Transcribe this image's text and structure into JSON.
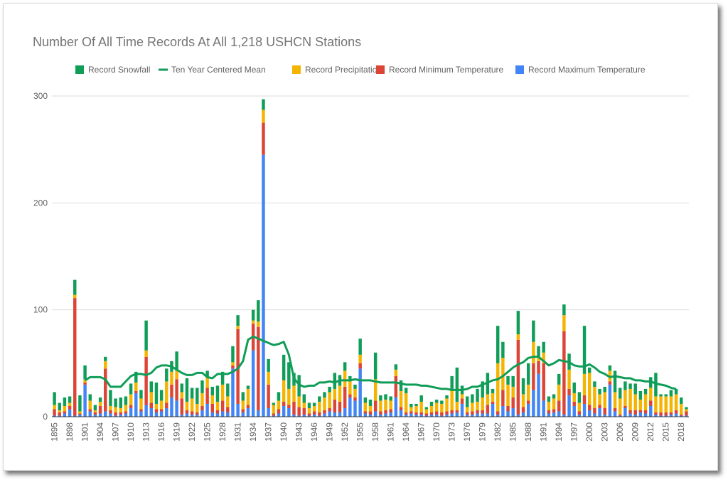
{
  "chart_data": {
    "type": "bar",
    "stacked": true,
    "title": "Number Of All Time Records At All 1,218 USHCN Stations",
    "xlabel": "",
    "ylabel": "",
    "ylim": [
      0,
      300
    ],
    "yticks": [
      0,
      100,
      200,
      300
    ],
    "grid": true,
    "legend_position": "top",
    "legend": [
      {
        "name": "Record Snowfall",
        "color": "#0f9d58",
        "marker": "square"
      },
      {
        "name": "Ten Year Centered Mean",
        "color": "#0f9d58",
        "marker": "line"
      },
      {
        "name": "Record Precipitation",
        "color": "#f4b400",
        "marker": "square"
      },
      {
        "name": "Record Minimum Temperature",
        "color": "#db4437",
        "marker": "square"
      },
      {
        "name": "Record Maximum Temperature",
        "color": "#4285f4",
        "marker": "square"
      }
    ],
    "x": [
      1895,
      1896,
      1897,
      1898,
      1899,
      1900,
      1901,
      1902,
      1903,
      1904,
      1905,
      1906,
      1907,
      1908,
      1909,
      1910,
      1911,
      1912,
      1913,
      1914,
      1915,
      1916,
      1917,
      1918,
      1919,
      1920,
      1921,
      1922,
      1923,
      1924,
      1925,
      1926,
      1927,
      1928,
      1929,
      1930,
      1931,
      1932,
      1933,
      1934,
      1935,
      1936,
      1937,
      1938,
      1939,
      1940,
      1941,
      1942,
      1943,
      1944,
      1945,
      1946,
      1947,
      1948,
      1949,
      1950,
      1951,
      1952,
      1953,
      1954,
      1955,
      1956,
      1957,
      1958,
      1959,
      1960,
      1961,
      1962,
      1963,
      1964,
      1965,
      1966,
      1967,
      1968,
      1969,
      1970,
      1971,
      1972,
      1973,
      1974,
      1975,
      1976,
      1977,
      1978,
      1979,
      1980,
      1981,
      1982,
      1983,
      1984,
      1985,
      1986,
      1987,
      1988,
      1989,
      1990,
      1991,
      1992,
      1993,
      1994,
      1995,
      1996,
      1997,
      1998,
      1999,
      2000,
      2001,
      2002,
      2003,
      2004,
      2005,
      2006,
      2007,
      2008,
      2009,
      2010,
      2011,
      2012,
      2013,
      2014,
      2015,
      2016,
      2017,
      2018,
      2019
    ],
    "x_tick_labels": [
      "1895",
      "1898",
      "1901",
      "1904",
      "1907",
      "1910",
      "1913",
      "1916",
      "1919",
      "1922",
      "1925",
      "1928",
      "1931",
      "1934",
      "1937",
      "1940",
      "1943",
      "1946",
      "1949",
      "1952",
      "1955",
      "1958",
      "1961",
      "1964",
      "1967",
      "1970",
      "1973",
      "1976",
      "1979",
      "1982",
      "1985",
      "1988",
      "1991",
      "1994",
      "1997",
      "2000",
      "2003",
      "2006",
      "2009",
      "2012",
      "2015",
      "2018"
    ],
    "series": [
      {
        "name": "Record Maximum Temperature",
        "color": "#4285f4",
        "values": [
          1,
          1,
          3,
          7,
          1,
          2,
          30,
          5,
          2,
          3,
          5,
          3,
          1,
          2,
          3,
          8,
          22,
          5,
          11,
          8,
          4,
          5,
          8,
          18,
          15,
          2,
          3,
          2,
          2,
          6,
          12,
          4,
          3,
          5,
          4,
          45,
          12,
          4,
          8,
          62,
          6,
          245,
          8,
          1,
          3,
          10,
          8,
          2,
          1,
          2,
          1,
          2,
          1,
          3,
          5,
          4,
          4,
          8,
          18,
          15,
          45,
          3,
          2,
          5,
          2,
          3,
          4,
          18,
          6,
          2,
          3,
          2,
          2,
          1,
          2,
          2,
          1,
          2,
          3,
          4,
          12,
          2,
          2,
          3,
          3,
          3,
          12,
          2,
          10,
          5,
          8,
          2,
          4,
          12,
          25,
          40,
          15,
          3,
          4,
          5,
          2,
          20,
          10,
          2,
          12,
          6,
          3,
          8,
          2,
          30,
          5,
          1,
          8,
          3,
          2,
          4,
          3,
          10,
          2,
          1,
          1,
          2,
          3,
          1,
          1
        ]
      },
      {
        "name": "Record Minimum Temperature",
        "color": "#db4437",
        "values": [
          6,
          3,
          2,
          3,
          110,
          1,
          2,
          2,
          2,
          7,
          40,
          3,
          3,
          2,
          2,
          3,
          2,
          2,
          45,
          5,
          3,
          2,
          5,
          12,
          20,
          15,
          3,
          3,
          2,
          4,
          15,
          8,
          3,
          10,
          5,
          3,
          70,
          3,
          3,
          25,
          78,
          30,
          22,
          2,
          4,
          4,
          3,
          12,
          8,
          6,
          2,
          3,
          3,
          3,
          3,
          12,
          10,
          20,
          3,
          3,
          5,
          2,
          3,
          10,
          3,
          3,
          3,
          20,
          3,
          2,
          2,
          2,
          2,
          2,
          2,
          3,
          3,
          3,
          3,
          2,
          5,
          2,
          3,
          3,
          3,
          8,
          2,
          3,
          15,
          5,
          10,
          70,
          5,
          3,
          25,
          12,
          35,
          3,
          3,
          10,
          78,
          6,
          4,
          3,
          8,
          5,
          5,
          3,
          6,
          3,
          3,
          1,
          2,
          3,
          4,
          2,
          3,
          5,
          2,
          3,
          3,
          2,
          3,
          1,
          4
        ]
      },
      {
        "name": "Record Precipitation",
        "color": "#f4b400",
        "values": [
          4,
          2,
          5,
          3,
          3,
          2,
          3,
          8,
          2,
          4,
          7,
          4,
          5,
          4,
          6,
          10,
          8,
          10,
          6,
          10,
          5,
          8,
          20,
          12,
          8,
          6,
          8,
          12,
          8,
          12,
          10,
          8,
          8,
          15,
          10,
          3,
          3,
          8,
          15,
          3,
          5,
          12,
          12,
          8,
          8,
          20,
          15,
          15,
          10,
          5,
          5,
          5,
          10,
          12,
          15,
          10,
          15,
          15,
          12,
          8,
          8,
          8,
          5,
          20,
          10,
          10,
          8,
          6,
          15,
          18,
          4,
          6,
          10,
          4,
          6,
          8,
          8,
          12,
          20,
          8,
          4,
          5,
          8,
          8,
          12,
          10,
          8,
          45,
          30,
          20,
          10,
          5,
          12,
          15,
          20,
          4,
          10,
          8,
          10,
          15,
          15,
          18,
          8,
          8,
          20,
          30,
          20,
          10,
          15,
          10,
          15,
          15,
          15,
          20,
          15,
          10,
          15,
          12,
          15,
          15,
          15,
          15,
          15,
          10,
          2
        ]
      },
      {
        "name": "Record Snowfall",
        "color": "#0f9d58",
        "values": [
          12,
          7,
          8,
          6,
          14,
          15,
          13,
          6,
          5,
          4,
          4,
          15,
          8,
          10,
          8,
          10,
          10,
          8,
          28,
          10,
          20,
          10,
          12,
          10,
          18,
          8,
          22,
          10,
          15,
          12,
          6,
          8,
          15,
          12,
          12,
          15,
          10,
          8,
          3,
          10,
          20,
          10,
          12,
          2,
          8,
          24,
          25,
          12,
          20,
          8,
          5,
          3,
          5,
          5,
          5,
          15,
          10,
          8,
          5,
          4,
          15,
          5,
          6,
          25,
          5,
          5,
          4,
          5,
          10,
          5,
          3,
          2,
          6,
          2,
          4,
          3,
          3,
          3,
          12,
          32,
          8,
          10,
          8,
          12,
          15,
          20,
          4,
          35,
          15,
          8,
          10,
          22,
          15,
          20,
          20,
          10,
          10,
          5,
          4,
          10,
          10,
          15,
          10,
          10,
          45,
          5,
          5,
          5,
          5,
          5,
          20,
          10,
          8,
          5,
          10,
          8,
          5,
          10,
          22,
          2,
          2,
          6,
          5,
          6,
          2
        ]
      },
      {
        "name": "Ten Year Centered Mean",
        "color": "#0f9d58",
        "type": "line",
        "values": [
          null,
          null,
          null,
          null,
          null,
          null,
          34,
          37,
          37,
          37,
          35,
          28,
          28,
          28,
          33,
          38,
          40,
          40,
          39,
          41,
          46,
          48,
          48,
          47,
          44,
          41,
          39,
          39,
          41,
          41,
          37,
          36,
          40,
          40,
          40,
          42,
          45,
          52,
          72,
          75,
          73,
          71,
          69,
          67,
          68,
          70,
          58,
          36,
          30,
          28,
          29,
          29,
          32,
          32,
          33,
          32,
          34,
          34,
          34,
          35,
          34,
          34,
          34,
          33,
          32,
          32,
          32,
          32,
          31,
          30,
          30,
          30,
          29,
          29,
          28,
          27,
          26,
          26,
          25,
          25,
          25,
          26,
          28,
          28,
          30,
          32,
          34,
          35,
          38,
          42,
          46,
          49,
          51,
          55,
          56,
          56,
          52,
          48,
          50,
          53,
          52,
          51,
          48,
          47,
          47,
          49,
          46,
          42,
          40,
          37,
          38,
          37,
          36,
          36,
          34,
          34,
          33,
          33,
          31,
          30,
          29,
          27,
          26,
          null,
          null
        ]
      }
    ]
  }
}
